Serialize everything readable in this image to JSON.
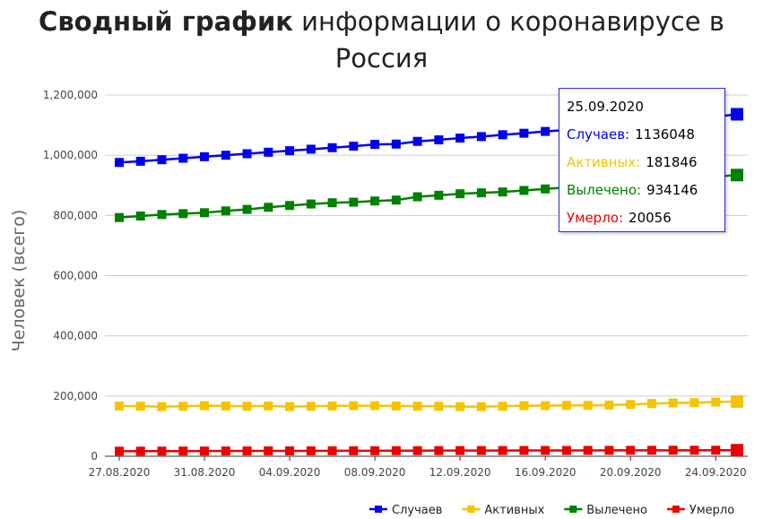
{
  "title": {
    "bold": "Сводный график",
    "rest_line1": " информации о коронавирусе в",
    "line2": "Россия"
  },
  "tooltip": {
    "date": "25.09.2020",
    "rows": [
      {
        "label": "Случаев:",
        "value": "1136048",
        "color": "#0000ee"
      },
      {
        "label": "Активных:",
        "value": "181846",
        "color": "#f5c400"
      },
      {
        "label": "Вылечено:",
        "value": "934146",
        "color": "#008000"
      },
      {
        "label": "Умерло:",
        "value": "20056",
        "color": "#ee0000"
      }
    ]
  },
  "chart_data": {
    "type": "line",
    "ylabel": "Человек (всего)",
    "xlabel": "",
    "ylim": [
      0,
      1200000
    ],
    "yticks": [
      "0",
      "200,000",
      "400,000",
      "600,000",
      "800,000",
      "1,000,000",
      "1,200,000"
    ],
    "yticks_values": [
      0,
      200000,
      400000,
      600000,
      800000,
      1000000,
      1200000
    ],
    "xtick_labels": [
      "27.08.2020",
      "31.08.2020",
      "04.09.2020",
      "08.09.2020",
      "12.09.2020",
      "16.09.2020",
      "20.09.2020",
      "24.09.2020"
    ],
    "x": [
      "27.08.2020",
      "28.08.2020",
      "29.08.2020",
      "30.08.2020",
      "31.08.2020",
      "01.09.2020",
      "02.09.2020",
      "03.09.2020",
      "04.09.2020",
      "05.09.2020",
      "06.09.2020",
      "07.09.2020",
      "08.09.2020",
      "09.09.2020",
      "10.09.2020",
      "11.09.2020",
      "12.09.2020",
      "13.09.2020",
      "14.09.2020",
      "15.09.2020",
      "16.09.2020",
      "17.09.2020",
      "18.09.2020",
      "19.09.2020",
      "20.09.2020",
      "21.09.2020",
      "22.09.2020",
      "23.09.2020",
      "24.09.2020",
      "25.09.2020"
    ],
    "legend_position": "bottom-right",
    "grid": true,
    "series": [
      {
        "name": "Случаев",
        "color": "#0000ee",
        "values": [
          976000,
          980000,
          985000,
          990000,
          995000,
          1000000,
          1005000,
          1010000,
          1015000,
          1020000,
          1025000,
          1030000,
          1036000,
          1037000,
          1046000,
          1051000,
          1057000,
          1062000,
          1068000,
          1073000,
          1079000,
          1084000,
          1091000,
          1097000,
          1103000,
          1109000,
          1115000,
          1122000,
          1128000,
          1136048
        ]
      },
      {
        "name": "Активных",
        "color": "#f5c400",
        "values": [
          167000,
          166000,
          165000,
          166000,
          168000,
          167000,
          166000,
          167000,
          165000,
          166000,
          167000,
          168000,
          168000,
          167000,
          166000,
          166000,
          165000,
          165000,
          166000,
          168000,
          168000,
          169000,
          169000,
          170000,
          172000,
          175000,
          177000,
          178000,
          180000,
          181846
        ]
      },
      {
        "name": "Вылечено",
        "color": "#008000",
        "values": [
          793000,
          798000,
          803000,
          806000,
          809000,
          815000,
          820000,
          827000,
          833000,
          838000,
          842000,
          844000,
          848000,
          851000,
          862000,
          867000,
          872000,
          875000,
          878000,
          883000,
          888000,
          893000,
          898000,
          904000,
          909000,
          914000,
          919000,
          924000,
          929000,
          934146
        ]
      },
      {
        "name": "Умерло",
        "color": "#ee0000",
        "values": [
          16900,
          17000,
          17100,
          17300,
          17400,
          17500,
          17700,
          17800,
          17900,
          18000,
          18100,
          18300,
          18400,
          18500,
          18600,
          18800,
          18900,
          19000,
          19100,
          19200,
          19300,
          19400,
          19500,
          19600,
          19700,
          19800,
          19900,
          19900,
          20000,
          20056
        ]
      }
    ]
  }
}
